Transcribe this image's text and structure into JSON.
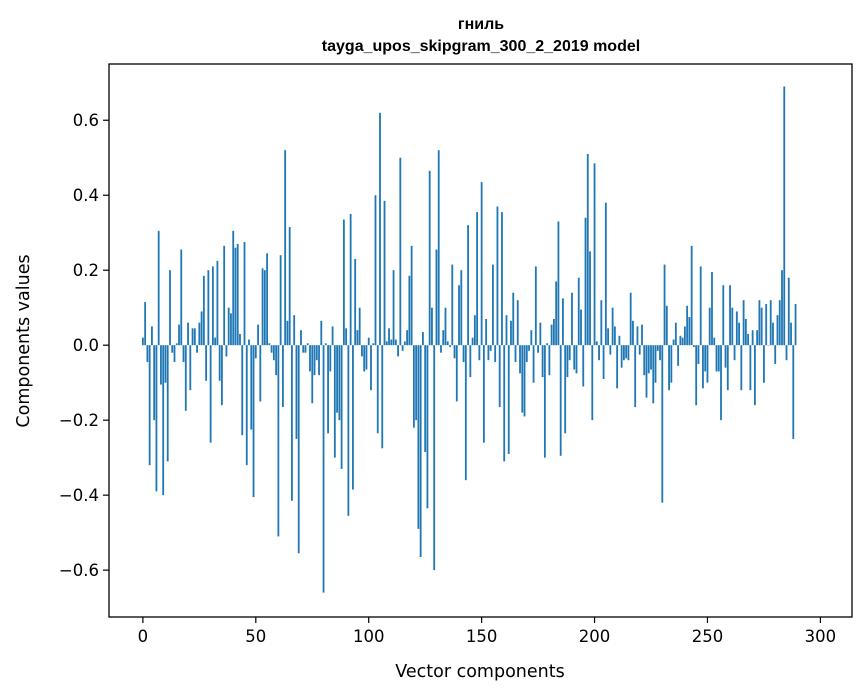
{
  "chart_data": {
    "type": "bar",
    "title": "гниль",
    "subtitle": "tayga_upos_skipgram_300_2_2019 model",
    "xlabel": "Vector components",
    "ylabel": "Components values",
    "xlim": [
      -15,
      314
    ],
    "ylim": [
      -0.725,
      0.75
    ],
    "xticks": [
      0,
      50,
      100,
      150,
      200,
      250,
      300
    ],
    "xtick_labels": [
      "0",
      "50",
      "100",
      "150",
      "200",
      "250",
      "300"
    ],
    "yticks": [
      -0.6,
      -0.4,
      -0.2,
      0.0,
      0.2,
      0.4,
      0.6
    ],
    "ytick_labels": [
      "−0.6",
      "−0.4",
      "−0.2",
      "0.0",
      "0.2",
      "0.4",
      "0.6"
    ],
    "bar_color": "#1f77b4",
    "values": [
      0.02,
      0.115,
      -0.045,
      -0.32,
      0.05,
      -0.2,
      -0.39,
      0.305,
      -0.105,
      -0.4,
      -0.1,
      -0.31,
      0.2,
      -0.02,
      -0.045,
      0.005,
      0.055,
      0.255,
      -0.045,
      -0.175,
      0.06,
      -0.12,
      0.045,
      0.045,
      -0.02,
      0.06,
      0.09,
      0.185,
      -0.095,
      0.2,
      -0.26,
      0.21,
      0.02,
      0.225,
      -0.095,
      -0.16,
      0.265,
      -0.03,
      0.1,
      0.085,
      0.305,
      0.26,
      0.27,
      0.03,
      -0.24,
      0.275,
      -0.32,
      0.015,
      -0.225,
      -0.405,
      -0.035,
      0.055,
      -0.15,
      0.205,
      0.2,
      0.245,
      0.005,
      -0.02,
      -0.04,
      -0.08,
      -0.51,
      0.24,
      -0.165,
      0.52,
      0.065,
      0.315,
      -0.415,
      0.08,
      -0.25,
      -0.555,
      0.04,
      -0.02,
      -0.02,
      0.005,
      -0.07,
      -0.155,
      -0.08,
      -0.04,
      -0.08,
      0.065,
      -0.66,
      0.005,
      -0.235,
      -0.07,
      0.05,
      -0.3,
      -0.18,
      -0.2,
      -0.33,
      0.335,
      0.045,
      -0.455,
      0.35,
      -0.385,
      0.23,
      0.04,
      0.1,
      -0.03,
      -0.07,
      -0.065,
      0.02,
      -0.12,
      0.005,
      0.4,
      -0.235,
      0.62,
      -0.275,
      0.385,
      0.01,
      0.045,
      0.015,
      0.2,
      0.015,
      -0.03,
      0.5,
      -0.015,
      0.01,
      0.04,
      0.185,
      0.265,
      -0.22,
      -0.2,
      -0.49,
      -0.565,
      0.035,
      -0.285,
      -0.435,
      0.465,
      0.1,
      -0.6,
      0.255,
      0.52,
      -0.02,
      0.04,
      0.1,
      0.01,
      -0.005,
      0.215,
      -0.035,
      -0.15,
      0.16,
      0.2,
      -0.045,
      -0.36,
      0.32,
      -0.085,
      0.02,
      0.08,
      0.355,
      -0.04,
      0.435,
      -0.26,
      0.07,
      -0.04,
      -0.015,
      0.215,
      -0.045,
      0.37,
      -0.165,
      0.355,
      -0.31,
      0.08,
      -0.29,
      0.065,
      0.14,
      -0.045,
      0.12,
      -0.075,
      -0.18,
      -0.19,
      -0.045,
      -0.015,
      0.04,
      -0.1,
      0.21,
      -0.02,
      0.06,
      -0.085,
      -0.3,
      0.005,
      -0.08,
      0.055,
      0.07,
      0.17,
      0.33,
      -0.295,
      0.125,
      -0.235,
      -0.085,
      -0.04,
      0.14,
      -0.065,
      -0.075,
      0.18,
      0.095,
      -0.11,
      0.34,
      0.51,
      0.25,
      -0.2,
      0.485,
      0.01,
      -0.04,
      0.12,
      -0.09,
      0.38,
      0.045,
      -0.025,
      0.1,
      0.05,
      -0.115,
      0.025,
      -0.06,
      -0.04,
      -0.035,
      -0.04,
      0.14,
      0.065,
      -0.165,
      0.05,
      -0.025,
      0.055,
      -0.08,
      -0.14,
      -0.075,
      -0.065,
      -0.155,
      -0.1,
      -0.015,
      -0.04,
      -0.42,
      0.215,
      0.105,
      -0.12,
      -0.1,
      0.015,
      0.06,
      -0.055,
      0.025,
      0.02,
      0.05,
      0.105,
      0.075,
      0.265,
      -0.005,
      -0.16,
      -0.05,
      0.21,
      -0.115,
      -0.07,
      -0.1,
      0.1,
      0.195,
      0.02,
      -0.07,
      -0.07,
      -0.2,
      0.16,
      -0.06,
      -0.12,
      0.16,
      0.1,
      -0.04,
      0.09,
      0.06,
      -0.12,
      0.12,
      0.07,
      0.03,
      -0.12,
      0.04,
      -0.16,
      0.04,
      0.12,
      0.1,
      -0.1,
      0.11,
      0.0,
      0.12,
      0.06,
      -0.05,
      0.08,
      0.12,
      0.2,
      0.69,
      -0.04,
      0.18,
      0.06,
      -0.25,
      0.11
    ]
  }
}
